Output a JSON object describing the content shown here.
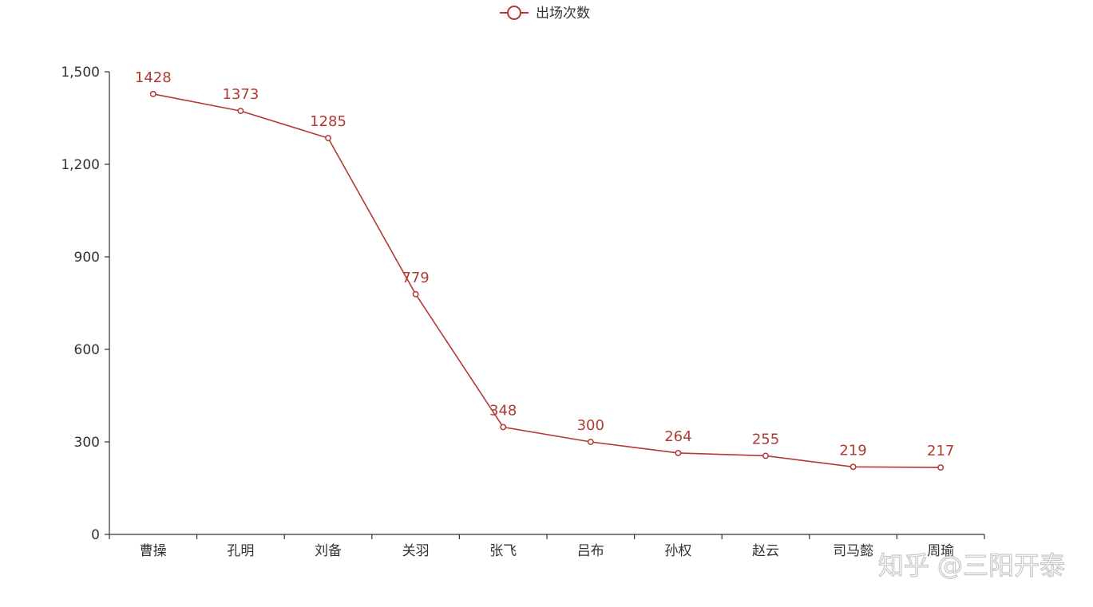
{
  "chart_data": {
    "type": "line",
    "categories": [
      "曹操",
      "孔明",
      "刘备",
      "关羽",
      "张飞",
      "吕布",
      "孙权",
      "赵云",
      "司马懿",
      "周瑜"
    ],
    "series": [
      {
        "name": "出场次数",
        "values": [
          1428,
          1373,
          1285,
          779,
          348,
          300,
          264,
          255,
          219,
          217
        ]
      }
    ],
    "ylim": [
      0,
      1500
    ],
    "yticks": [
      0,
      300,
      600,
      900,
      1200,
      1500
    ],
    "ytick_labels": [
      "0",
      "300",
      "600",
      "900",
      "1,200",
      "1,500"
    ],
    "grid": false,
    "legend_position": "top-center",
    "line_color": "#b03a34",
    "axis_color": "#333333"
  },
  "watermark": "知乎 @三阳开泰"
}
